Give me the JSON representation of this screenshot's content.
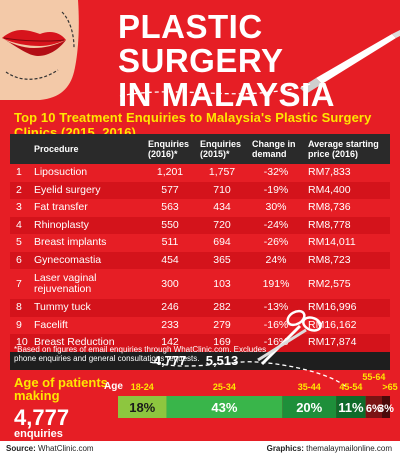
{
  "header": {
    "title_line1": "PLASTIC SURGERY",
    "title_line2": "IN MALAYSIA"
  },
  "subtitle": "Top 10 Treatment Enquiries to Malaysia's Plastic Surgery Clinics (2015, 2016)",
  "table": {
    "headers": {
      "procedure": "Procedure",
      "enq2016": "Enquiries (2016)*",
      "enq2015": "Enquiries (2015)*",
      "change": "Change in demand",
      "price": "Average starting price (2016)"
    },
    "rows": [
      {
        "num": "1",
        "procedure": "Liposuction",
        "enq2016": "1,201",
        "enq2015": "1,757",
        "change": "-32%",
        "price": "RM7,833"
      },
      {
        "num": "2",
        "procedure": "Eyelid surgery",
        "enq2016": "577",
        "enq2015": "710",
        "change": "-19%",
        "price": "RM4,400"
      },
      {
        "num": "3",
        "procedure": "Fat transfer",
        "enq2016": "563",
        "enq2015": "434",
        "change": "30%",
        "price": "RM8,736"
      },
      {
        "num": "4",
        "procedure": "Rhinoplasty",
        "enq2016": "550",
        "enq2015": "720",
        "change": "-24%",
        "price": "RM8,778"
      },
      {
        "num": "5",
        "procedure": "Breast implants",
        "enq2016": "511",
        "enq2015": "694",
        "change": "-26%",
        "price": "RM14,011"
      },
      {
        "num": "6",
        "procedure": "Gynecomastia",
        "enq2016": "454",
        "enq2015": "365",
        "change": "24%",
        "price": "RM8,723"
      },
      {
        "num": "7",
        "procedure": "Laser vaginal rejuvenation",
        "enq2016": "300",
        "enq2015": "103",
        "change": "191%",
        "price": "RM2,575"
      },
      {
        "num": "8",
        "procedure": "Tummy tuck",
        "enq2016": "246",
        "enq2015": "282",
        "change": "-13%",
        "price": "RM16,996"
      },
      {
        "num": "9",
        "procedure": "Facelift",
        "enq2016": "233",
        "enq2015": "279",
        "change": "-16%",
        "price": "RM16,162"
      },
      {
        "num": "10",
        "procedure": "Breast Reduction",
        "enq2016": "142",
        "enq2015": "169",
        "change": "-16%",
        "price": "RM17,874"
      }
    ],
    "totals": {
      "enq2016": "4,777",
      "enq2015": "5,513"
    }
  },
  "footnote": "*Based on figures of email enquiries through WhatClinic.com. Excludes phone enquiries and general consultations requests.",
  "age_panel": {
    "title": "Age of patients making",
    "big_number": "4,777",
    "sub": "enquiries",
    "axis_label": "Age"
  },
  "footer": {
    "source_label": "Source:",
    "source": "WhatClinic.com",
    "graphics_label": "Graphics:",
    "graphics": "themalaymailonline.com"
  },
  "chart_data": {
    "type": "bar",
    "orientation": "stacked-horizontal",
    "xlabel": "Age",
    "categories": [
      "18-24",
      "25-34",
      "35-44",
      "45-54",
      "55-64",
      ">65"
    ],
    "values": [
      18,
      43,
      20,
      11,
      6,
      3
    ],
    "value_labels": [
      "18%",
      "43%",
      "20%",
      "11%",
      "6%",
      "3%"
    ],
    "colors": [
      "#8dc63f",
      "#39b54a",
      "#1e8f3a",
      "#0f6b2a",
      "#7a1414",
      "#4a0a0a"
    ]
  },
  "colors": {
    "background": "#e61e25",
    "accent_yellow": "#ffe600",
    "header_dark": "#2a2a2a"
  },
  "icons": [
    "lips-icon",
    "scalpel-icon",
    "scissors-icon"
  ]
}
